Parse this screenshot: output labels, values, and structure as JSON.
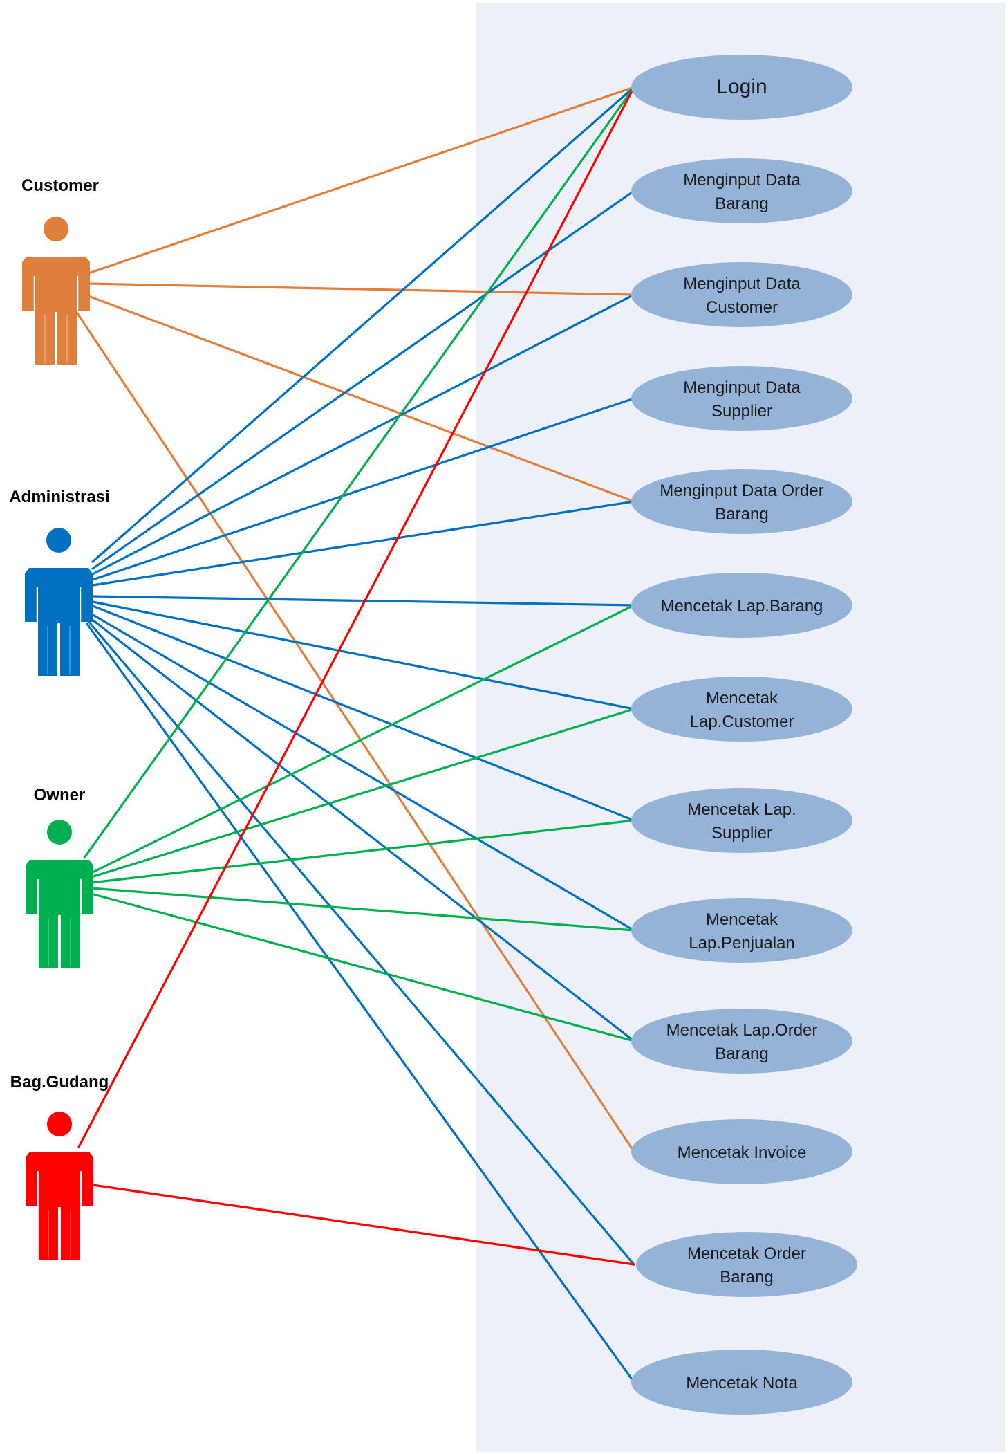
{
  "colors": {
    "customer": "#E07E3C",
    "administrasi": "#0070C0",
    "owner": "#00B050",
    "gudang": "#FF0000",
    "usecase_fill": "#95B3D7",
    "system_bg": "#EDF1F7"
  },
  "actors": [
    {
      "id": "customer",
      "label": "Customer",
      "color": "#E07E3C"
    },
    {
      "id": "administrasi",
      "label": "Administrasi",
      "color": "#0070C0"
    },
    {
      "id": "owner",
      "label": "Owner",
      "color": "#00B050"
    },
    {
      "id": "gudang",
      "label": "Bag.Gudang",
      "color": "#FF0000"
    }
  ],
  "usecases": [
    {
      "id": "login",
      "lines": [
        "Login"
      ]
    },
    {
      "id": "input-barang",
      "lines": [
        "Menginput Data",
        "Barang"
      ]
    },
    {
      "id": "input-customer",
      "lines": [
        "Menginput Data",
        "Customer"
      ]
    },
    {
      "id": "input-supplier",
      "lines": [
        "Menginput Data",
        "Supplier"
      ]
    },
    {
      "id": "input-order",
      "lines": [
        "Menginput Data Order",
        "Barang"
      ]
    },
    {
      "id": "lap-barang",
      "lines": [
        "Mencetak Lap.Barang"
      ]
    },
    {
      "id": "lap-customer",
      "lines": [
        "Mencetak",
        "Lap.Customer"
      ]
    },
    {
      "id": "lap-supplier",
      "lines": [
        "Mencetak Lap.",
        "Supplier"
      ]
    },
    {
      "id": "lap-penjualan",
      "lines": [
        "Mencetak",
        "Lap.Penjualan"
      ]
    },
    {
      "id": "lap-order",
      "lines": [
        "Mencetak Lap.Order",
        "Barang"
      ]
    },
    {
      "id": "invoice",
      "lines": [
        "Mencetak Invoice"
      ]
    },
    {
      "id": "order-barang",
      "lines": [
        "Mencetak Order",
        "Barang"
      ]
    },
    {
      "id": "nota",
      "lines": [
        "Mencetak Nota"
      ]
    }
  ],
  "associations": [
    {
      "actor": "customer",
      "usecase": "login"
    },
    {
      "actor": "customer",
      "usecase": "input-customer"
    },
    {
      "actor": "customer",
      "usecase": "input-order"
    },
    {
      "actor": "customer",
      "usecase": "invoice"
    },
    {
      "actor": "administrasi",
      "usecase": "login"
    },
    {
      "actor": "administrasi",
      "usecase": "input-barang"
    },
    {
      "actor": "administrasi",
      "usecase": "input-customer"
    },
    {
      "actor": "administrasi",
      "usecase": "input-supplier"
    },
    {
      "actor": "administrasi",
      "usecase": "input-order"
    },
    {
      "actor": "administrasi",
      "usecase": "lap-barang"
    },
    {
      "actor": "administrasi",
      "usecase": "lap-customer"
    },
    {
      "actor": "administrasi",
      "usecase": "lap-supplier"
    },
    {
      "actor": "administrasi",
      "usecase": "lap-penjualan"
    },
    {
      "actor": "administrasi",
      "usecase": "lap-order"
    },
    {
      "actor": "administrasi",
      "usecase": "order-barang"
    },
    {
      "actor": "administrasi",
      "usecase": "nota"
    },
    {
      "actor": "owner",
      "usecase": "login"
    },
    {
      "actor": "owner",
      "usecase": "lap-barang"
    },
    {
      "actor": "owner",
      "usecase": "lap-customer"
    },
    {
      "actor": "owner",
      "usecase": "lap-supplier"
    },
    {
      "actor": "owner",
      "usecase": "lap-penjualan"
    },
    {
      "actor": "owner",
      "usecase": "lap-order"
    },
    {
      "actor": "gudang",
      "usecase": "login"
    },
    {
      "actor": "gudang",
      "usecase": "order-barang"
    }
  ]
}
